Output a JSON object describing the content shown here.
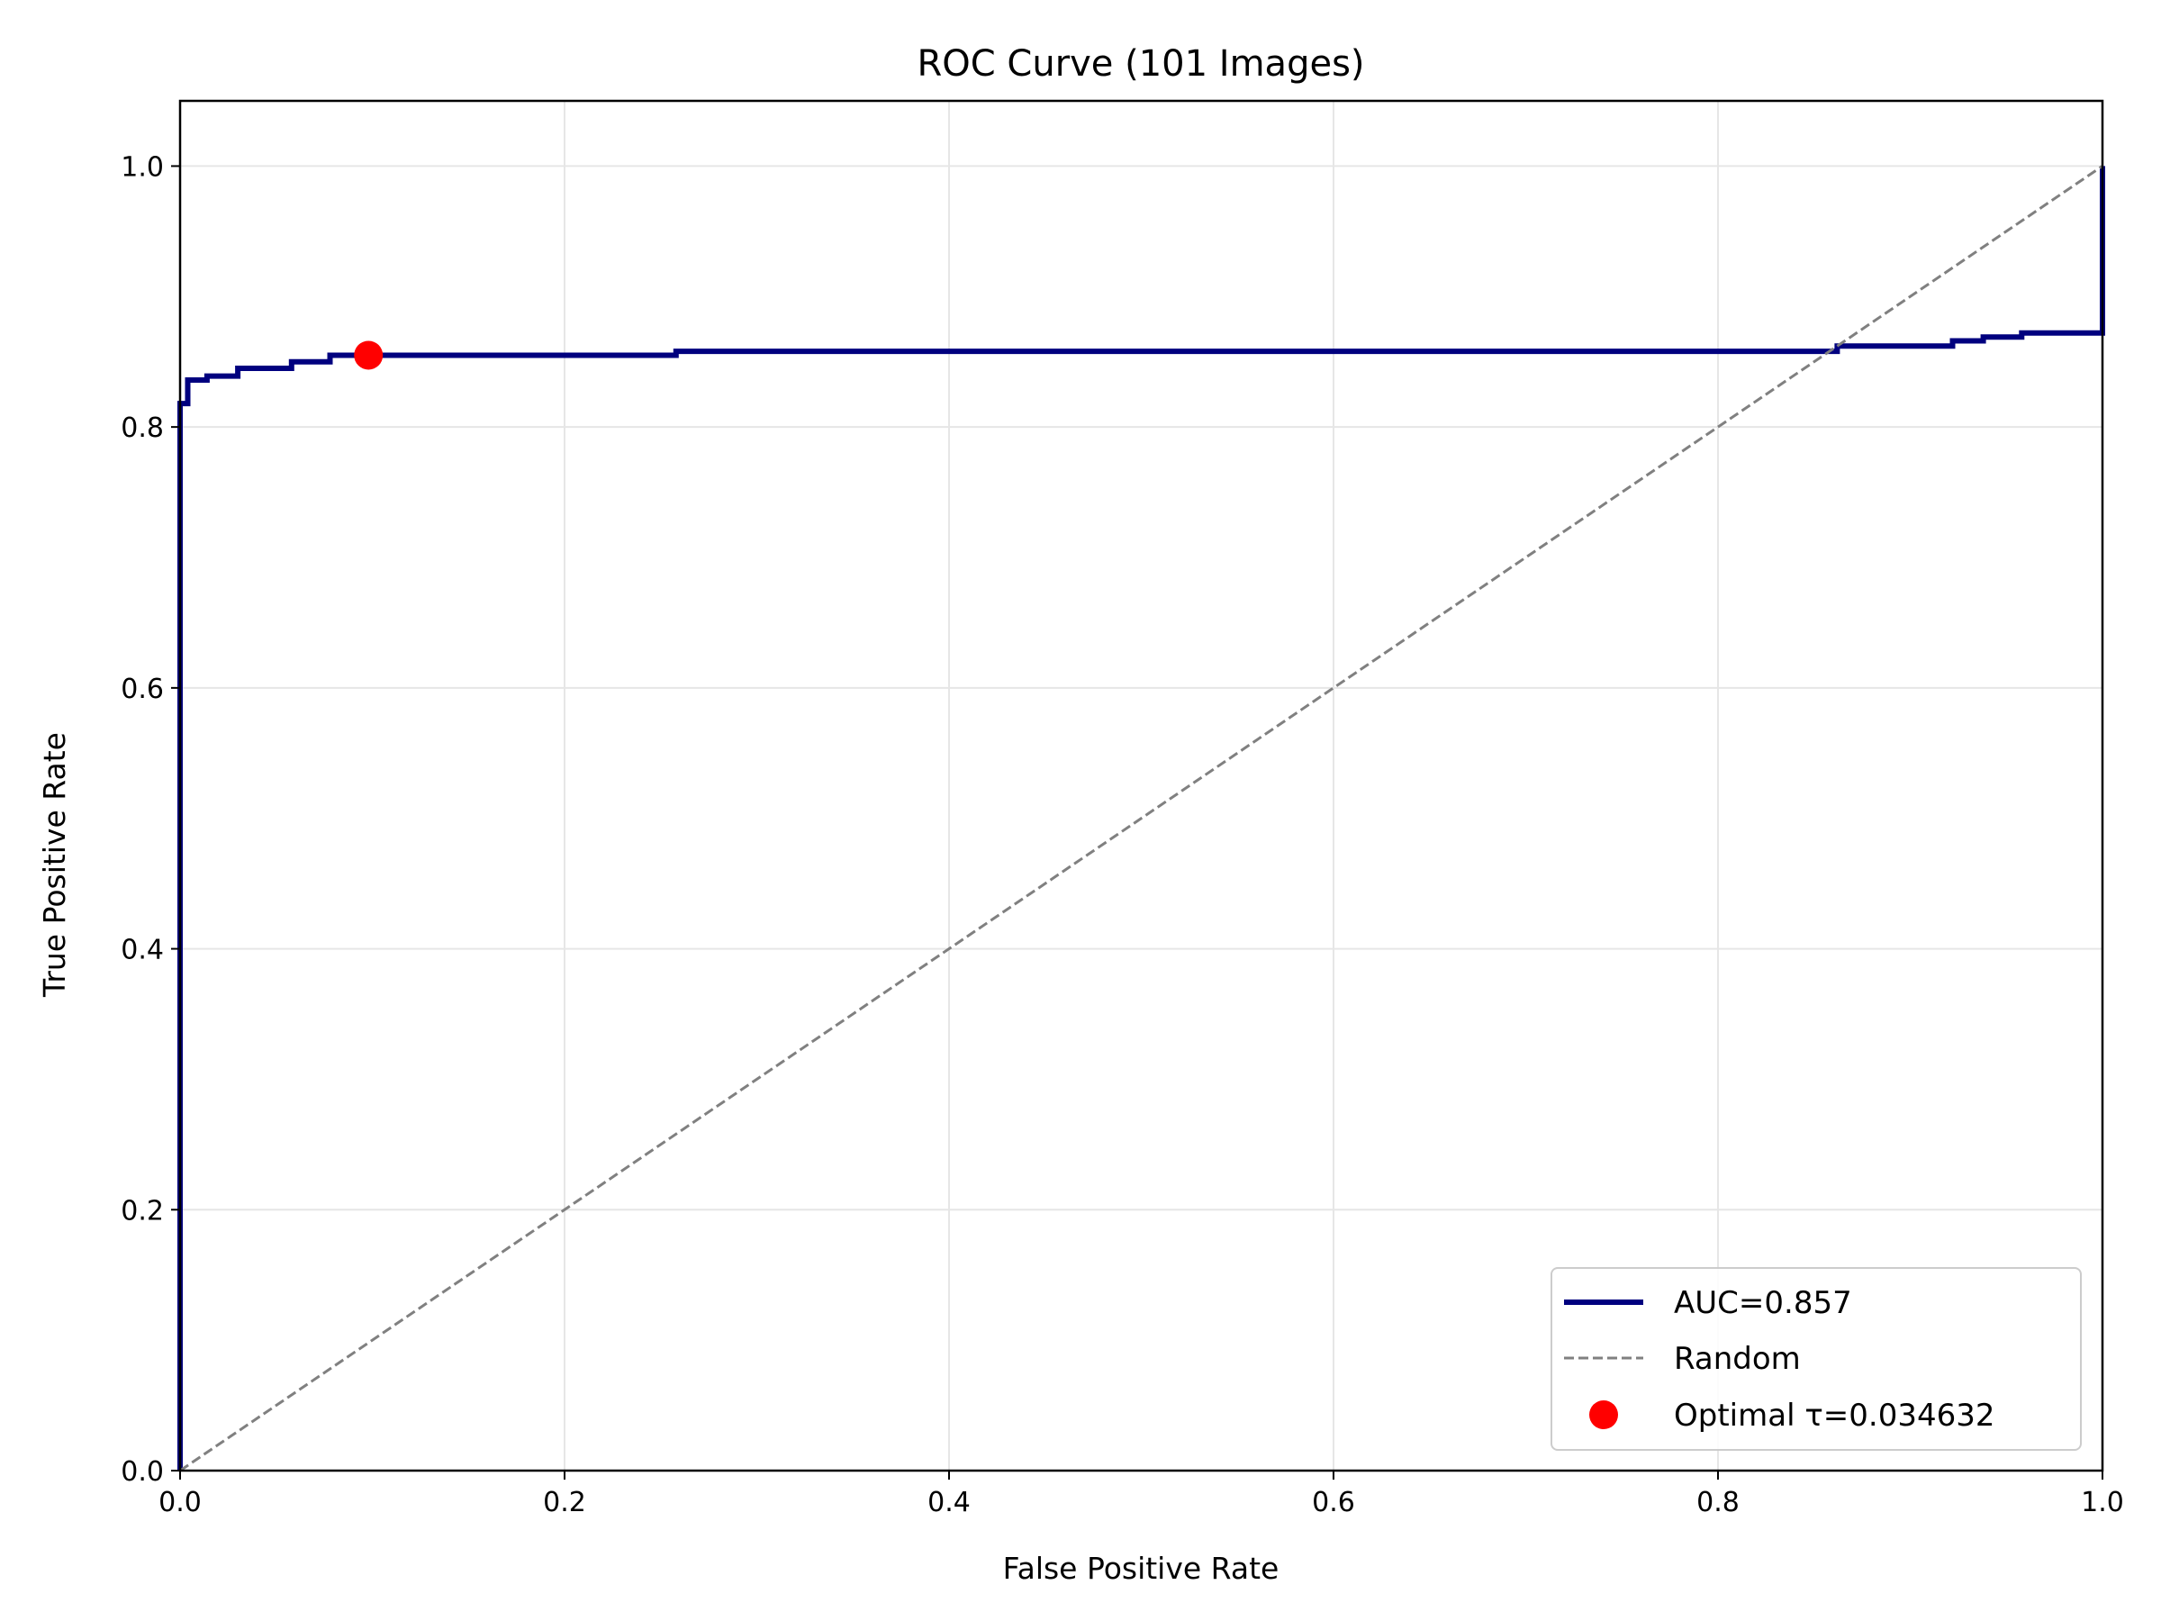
{
  "chart_data": {
    "type": "line",
    "title": "ROC Curve (101 Images)",
    "xlabel": "False Positive Rate",
    "ylabel": "True Positive Rate",
    "xlim": [
      0.0,
      1.0
    ],
    "ylim": [
      0.0,
      1.05
    ],
    "xticks": [
      "0.0",
      "0.2",
      "0.4",
      "0.6",
      "0.8",
      "1.0"
    ],
    "yticks": [
      "0.0",
      "0.2",
      "0.4",
      "0.6",
      "0.8",
      "1.0"
    ],
    "grid": true,
    "legend_position": "lower right",
    "series": [
      {
        "name": "AUC=0.857",
        "kind": "step-line",
        "color": "#00007f",
        "x": [
          0.0,
          0.0,
          0.004,
          0.004,
          0.014,
          0.014,
          0.03,
          0.03,
          0.058,
          0.058,
          0.078,
          0.078,
          0.098,
          0.258,
          0.258,
          0.862,
          0.862,
          0.922,
          0.922,
          0.938,
          0.938,
          0.958,
          0.958,
          1.0,
          1.0
        ],
        "y": [
          0.0,
          0.818,
          0.818,
          0.836,
          0.836,
          0.839,
          0.839,
          0.845,
          0.845,
          0.85,
          0.85,
          0.855,
          0.855,
          0.855,
          0.858,
          0.858,
          0.862,
          0.862,
          0.866,
          0.866,
          0.869,
          0.869,
          0.872,
          0.872,
          1.0
        ]
      },
      {
        "name": "Random",
        "kind": "dashed-line",
        "color": "#808080",
        "x": [
          0.0,
          1.0
        ],
        "y": [
          0.0,
          1.0
        ]
      },
      {
        "name": "Optimal τ=0.034632",
        "kind": "point",
        "color": "#ff0000",
        "x": [
          0.098
        ],
        "y": [
          0.855
        ]
      }
    ]
  }
}
